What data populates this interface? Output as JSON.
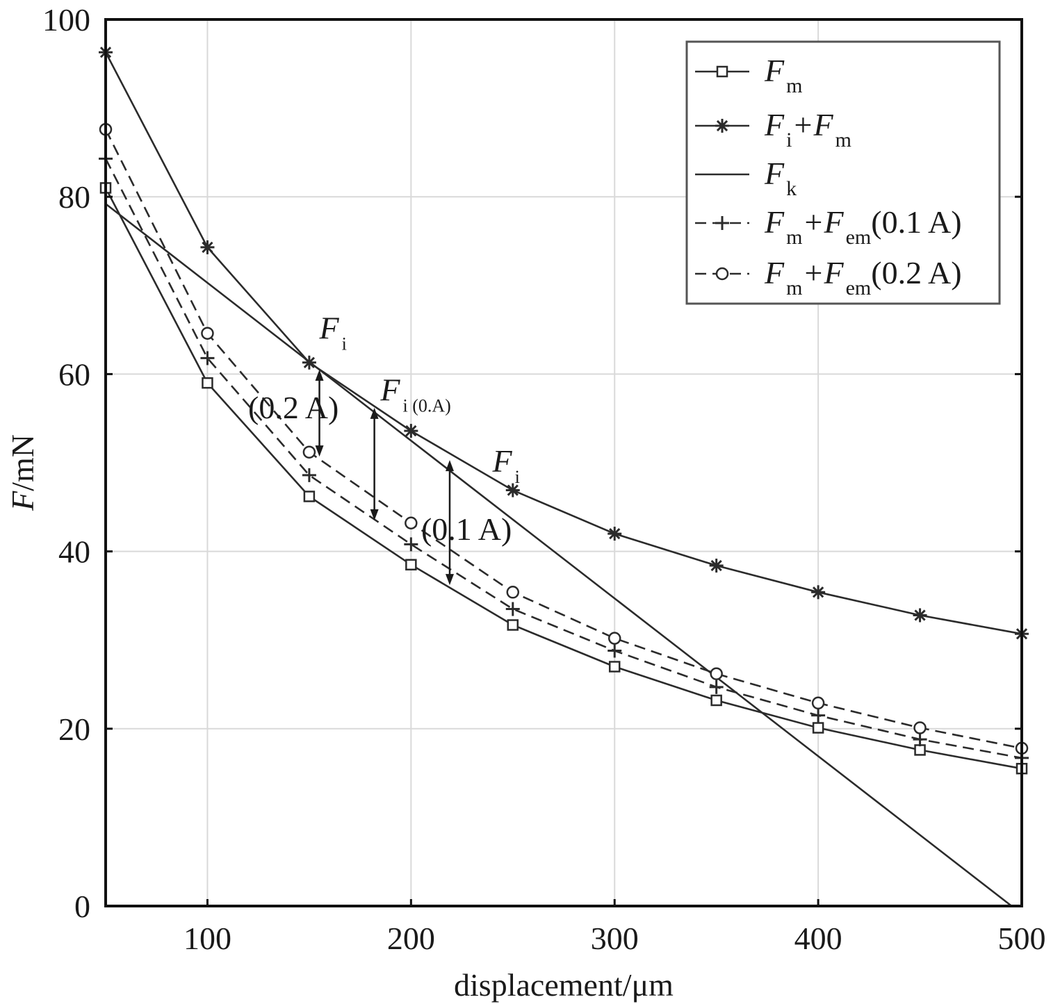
{
  "chart_data": {
    "type": "line",
    "title": "",
    "xlabel": "displacement/μm",
    "ylabel": {
      "italic": "F",
      "rest": "/mN"
    },
    "xlim": [
      50,
      500
    ],
    "ylim": [
      0,
      100
    ],
    "xticks": [
      100,
      200,
      300,
      400,
      500
    ],
    "yticks": [
      0,
      20,
      40,
      60,
      80,
      100
    ],
    "grid": true,
    "legend_position": "top-right",
    "series": [
      {
        "key": "fm",
        "name": "Fm",
        "legend_parts": [
          [
            "F",
            "m"
          ]
        ],
        "marker": "square",
        "dash": false,
        "x": [
          50,
          100,
          150,
          200,
          250,
          300,
          350,
          400,
          450,
          500
        ],
        "y": [
          81,
          59,
          46.2,
          38.5,
          31.7,
          27,
          23.2,
          20.1,
          17.6,
          15.5
        ]
      },
      {
        "key": "fi_fm",
        "name": "Fi+Fm",
        "legend_parts": [
          [
            "F",
            "i"
          ],
          [
            "+F",
            "m"
          ]
        ],
        "marker": "asterisk",
        "dash": false,
        "x": [
          50,
          100,
          150,
          200,
          250,
          300,
          350,
          400,
          450,
          500
        ],
        "y": [
          96.3,
          74.3,
          61.3,
          53.6,
          46.9,
          42,
          38.4,
          35.4,
          32.8,
          30.7
        ]
      },
      {
        "key": "fk",
        "name": "Fk",
        "legend_parts": [
          [
            "F",
            "k"
          ]
        ],
        "marker": "none",
        "dash": false,
        "x": [
          50,
          155,
          495
        ],
        "y": [
          79.2,
          60.5,
          0
        ]
      },
      {
        "key": "fm_fem_01",
        "name": "Fm+Fem(0.1 A)",
        "legend_parts": [
          [
            "F",
            "m"
          ],
          [
            "+F",
            "em"
          ],
          [
            "(0.1 A)",
            ""
          ]
        ],
        "marker": "plus",
        "dash": true,
        "x": [
          50,
          100,
          150,
          200,
          250,
          300,
          350,
          400,
          450,
          500
        ],
        "y": [
          84.3,
          61.8,
          48.6,
          40.8,
          33.5,
          28.8,
          24.7,
          21.5,
          18.8,
          16.7
        ]
      },
      {
        "key": "fm_fem_02",
        "name": "Fm+Fem(0.2 A)",
        "legend_parts": [
          [
            "F",
            "m"
          ],
          [
            "+F",
            "em"
          ],
          [
            "(0.2 A)",
            ""
          ]
        ],
        "marker": "circle",
        "dash": true,
        "x": [
          50,
          100,
          150,
          200,
          250,
          300,
          350,
          400,
          450,
          500
        ],
        "y": [
          87.6,
          64.6,
          51.2,
          43.2,
          35.4,
          30.2,
          26.2,
          22.9,
          20.1,
          17.8
        ]
      }
    ],
    "annotations": [
      {
        "key": "fi_02",
        "main": "F",
        "sub": "i",
        "x": 155,
        "y": 64
      },
      {
        "key": "label_02",
        "text": "(0.2 A)",
        "x": 120,
        "y": 55
      },
      {
        "key": "fi_0a",
        "main": "F",
        "sub": "i (0.A)",
        "x": 185,
        "y": 57
      },
      {
        "key": "fi_01",
        "main": "F",
        "sub": "i",
        "x": 240,
        "y": 49
      },
      {
        "key": "label_01",
        "text": "(0.1 A)",
        "x": 205,
        "y": 41.3
      }
    ],
    "arrows": [
      {
        "key": "arrow_02",
        "x": 155,
        "y_top": 60.5,
        "y_bottom": 50.7
      },
      {
        "key": "arrow_0a",
        "x": 182,
        "y_top": 56.2,
        "y_bottom": 43.5
      },
      {
        "key": "arrow_01",
        "x": 219,
        "y_top": 50.3,
        "y_bottom": 36.2
      }
    ]
  },
  "colors": {
    "line": "#2b2b2b",
    "grid": "#d9d9d9",
    "axis": "#111111",
    "legend_border": "#555555"
  }
}
